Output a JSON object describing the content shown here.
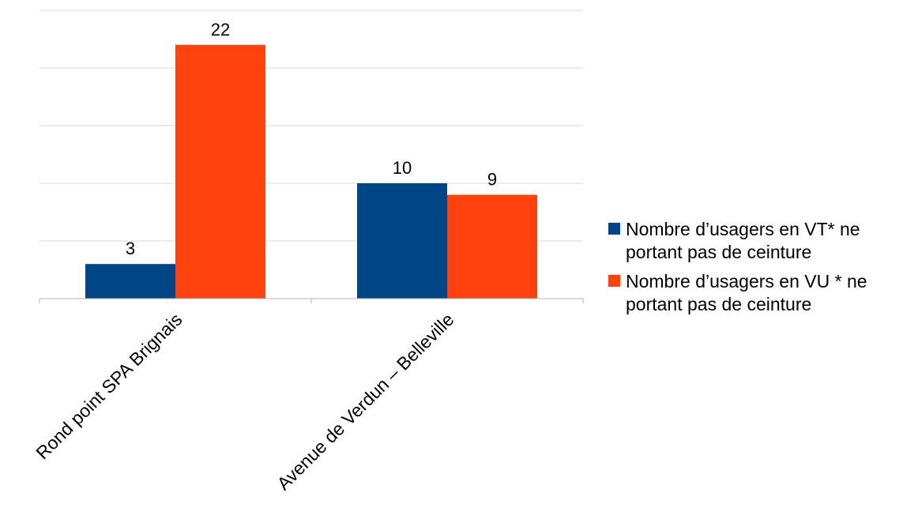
{
  "chart_data": {
    "type": "bar",
    "categories": [
      "Rond point SPA Brignais",
      "Avenue de Verdun – Belleville"
    ],
    "series": [
      {
        "name": "Nombre d’usagers en VT* ne portant pas de ceinture",
        "values": [
          3,
          10
        ],
        "color": "#004586"
      },
      {
        "name": "Nombre d’usagers en VU * ne portant pas de ceinture",
        "values": [
          22,
          9
        ],
        "color": "#ff420e"
      }
    ],
    "ylim": [
      0,
      25
    ],
    "grid": true,
    "legend": "right",
    "data_labels": true
  }
}
